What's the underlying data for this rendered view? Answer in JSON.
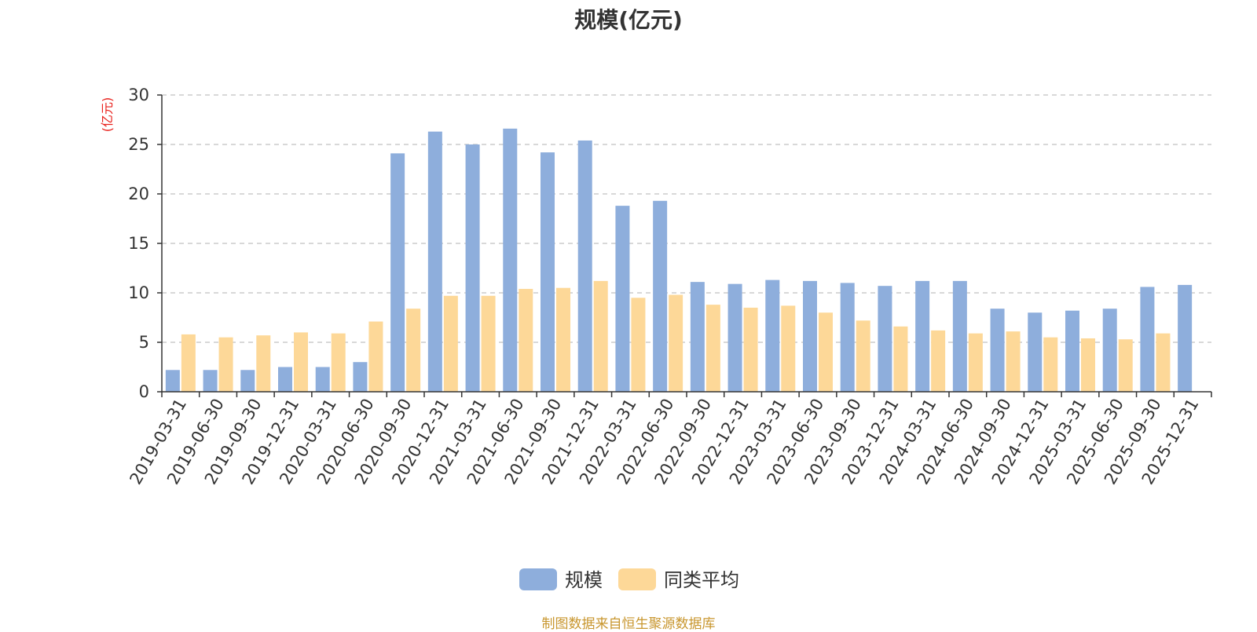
{
  "chart_data": {
    "type": "bar",
    "title": "规模(亿元)",
    "ylabel": "(亿元)",
    "xlabel": "",
    "ylim": [
      0,
      30
    ],
    "yticks": [
      0,
      5,
      10,
      15,
      20,
      25,
      30
    ],
    "grid": true,
    "legend_position": "bottom-center",
    "categories": [
      "2019-03-31",
      "2019-06-30",
      "2019-09-30",
      "2019-12-31",
      "2020-03-31",
      "2020-06-30",
      "2020-09-30",
      "2020-12-31",
      "2021-03-31",
      "2021-06-30",
      "2021-09-30",
      "2021-12-31",
      "2022-03-31",
      "2022-06-30",
      "2022-09-30",
      "2022-12-31",
      "2023-03-31",
      "2023-06-30",
      "2023-09-30",
      "2023-12-31",
      "2024-03-31",
      "2024-06-30",
      "2024-09-30",
      "2024-12-31",
      "2025-03-31",
      "2025-06-30",
      "2025-09-30",
      "2025-12-31"
    ],
    "series": [
      {
        "name": "规模",
        "color": "#8eaedc",
        "values": [
          2.2,
          2.2,
          2.2,
          2.5,
          2.5,
          3.0,
          24.1,
          26.3,
          25.0,
          26.6,
          24.2,
          25.4,
          18.8,
          19.3,
          11.1,
          10.9,
          11.3,
          11.2,
          11.0,
          10.7,
          11.2,
          11.2,
          8.4,
          8.0,
          8.2,
          8.4,
          10.6,
          10.8
        ]
      },
      {
        "name": "同类平均",
        "color": "#fdd898",
        "values": [
          5.8,
          5.5,
          5.7,
          6.0,
          5.9,
          7.1,
          8.4,
          9.7,
          9.7,
          10.4,
          10.5,
          11.2,
          9.5,
          9.8,
          8.8,
          8.5,
          8.7,
          8.0,
          7.2,
          6.6,
          6.2,
          5.9,
          6.1,
          5.5,
          5.4,
          5.3,
          5.9,
          null
        ]
      }
    ]
  },
  "ylabel_color": "#e8201b",
  "source_note": {
    "text": "制图数据来自恒生聚源数据库",
    "color": "#c8962e"
  }
}
